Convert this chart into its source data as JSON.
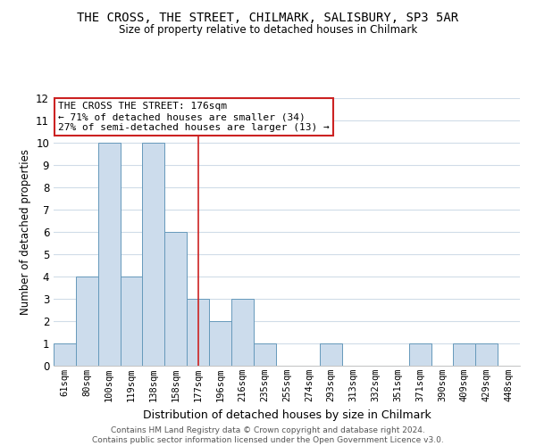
{
  "title": "THE CROSS, THE STREET, CHILMARK, SALISBURY, SP3 5AR",
  "subtitle": "Size of property relative to detached houses in Chilmark",
  "xlabel": "Distribution of detached houses by size in Chilmark",
  "ylabel": "Number of detached properties",
  "bin_labels": [
    "61sqm",
    "80sqm",
    "100sqm",
    "119sqm",
    "138sqm",
    "158sqm",
    "177sqm",
    "196sqm",
    "216sqm",
    "235sqm",
    "255sqm",
    "274sqm",
    "293sqm",
    "313sqm",
    "332sqm",
    "351sqm",
    "371sqm",
    "390sqm",
    "409sqm",
    "429sqm",
    "448sqm"
  ],
  "bar_heights": [
    1,
    4,
    10,
    4,
    10,
    6,
    3,
    2,
    3,
    1,
    0,
    0,
    1,
    0,
    0,
    0,
    1,
    0,
    1,
    1,
    0
  ],
  "bar_color": "#ccdcec",
  "bar_edge_color": "#6699bb",
  "subject_line_index": 6,
  "annotation_title": "THE CROSS THE STREET: 176sqm",
  "annotation_line1": "← 71% of detached houses are smaller (34)",
  "annotation_line2": "27% of semi-detached houses are larger (13) →",
  "annotation_box_color": "#ffffff",
  "annotation_box_edge_color": "#cc2222",
  "subject_line_color": "#cc2222",
  "ylim": [
    0,
    12
  ],
  "yticks": [
    0,
    1,
    2,
    3,
    4,
    5,
    6,
    7,
    8,
    9,
    10,
    11,
    12
  ],
  "footer_line1": "Contains HM Land Registry data © Crown copyright and database right 2024.",
  "footer_line2": "Contains public sector information licensed under the Open Government Licence v3.0.",
  "background_color": "#ffffff",
  "plot_background_color": "#ffffff",
  "grid_color": "#d0dce8"
}
